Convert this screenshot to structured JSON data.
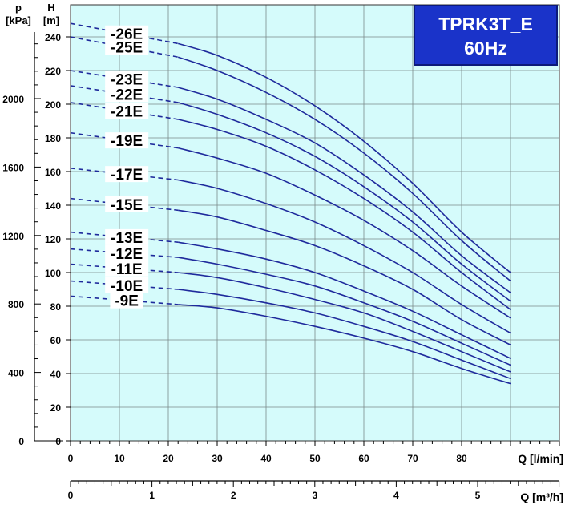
{
  "title_box": {
    "line1": "TPRK3T_E",
    "line2": "60Hz"
  },
  "colors": {
    "plot_bg": "#d5fbfb",
    "curve": "#1f2a9c",
    "grid": "#7a8a8a",
    "title_bg": "#1a33c9"
  },
  "axes": {
    "pressure_unit_line1": "p",
    "pressure_unit_line2": "[kPa]",
    "head_unit_line1": "H",
    "head_unit_line2": "[m]",
    "flow_lmin_label": "Q [l/min]",
    "flow_m3h_label": "Q [m³/h]",
    "head_ticks": [
      "0",
      "20",
      "40",
      "60",
      "80",
      "100",
      "120",
      "140",
      "160",
      "180",
      "200",
      "220",
      "240"
    ],
    "pressure_ticks": [
      "0",
      "400",
      "800",
      "1200",
      "1600",
      "2000"
    ],
    "flow_lmin_ticks": [
      "0",
      "10",
      "20",
      "30",
      "40",
      "50",
      "60",
      "70",
      "80"
    ],
    "flow_m3h_ticks": [
      "0",
      "1",
      "2",
      "3",
      "4",
      "5"
    ]
  },
  "chart_data": {
    "type": "line",
    "xlabel": "Q [l/min]",
    "ylabel": "H [m]",
    "xlim": [
      0,
      100
    ],
    "ylim": [
      0,
      250
    ],
    "secondary_y": {
      "label": "p [kPa]",
      "lim": [
        0,
        2450
      ]
    },
    "secondary_x": {
      "label": "Q [m³/h]",
      "lim": [
        0,
        6
      ]
    },
    "grid": true,
    "dashed_range_lmin": [
      0,
      22
    ],
    "x": [
      0,
      22,
      30,
      40,
      50,
      60,
      70,
      80,
      90
    ],
    "series": [
      {
        "name": "-26E",
        "values": [
          248,
          236,
          229,
          216,
          199,
          178,
          153,
          124,
          100
        ]
      },
      {
        "name": "-25E",
        "values": [
          240,
          228,
          220,
          207,
          191,
          171,
          147,
          119,
          95
        ]
      },
      {
        "name": "-23E",
        "values": [
          220,
          210,
          203,
          191,
          177,
          158,
          136,
          110,
          88
        ]
      },
      {
        "name": "-22E",
        "values": [
          211,
          201,
          194,
          183,
          169,
          151,
          130,
          105,
          83
        ]
      },
      {
        "name": "-21E",
        "values": [
          201,
          191,
          185,
          175,
          161,
          144,
          124,
          100,
          78
        ]
      },
      {
        "name": "-19E",
        "values": [
          183,
          174,
          168,
          159,
          146,
          131,
          113,
          92,
          73
        ]
      },
      {
        "name": "-17E",
        "values": [
          162,
          155,
          150,
          141,
          130,
          116,
          100,
          81,
          64
        ]
      },
      {
        "name": "-15E",
        "values": [
          144,
          137,
          133,
          125,
          116,
          104,
          90,
          72,
          57
        ]
      },
      {
        "name": "-13E",
        "values": [
          124,
          118,
          114,
          108,
          100,
          89,
          77,
          63,
          49
        ]
      },
      {
        "name": "-12E",
        "values": [
          114,
          109,
          105,
          99,
          92,
          82,
          71,
          58,
          45
        ]
      },
      {
        "name": "-11E",
        "values": [
          105,
          100,
          97,
          91,
          84,
          76,
          65,
          53,
          41
        ]
      },
      {
        "name": "-10E",
        "values": [
          95,
          90,
          87,
          82,
          76,
          68,
          59,
          48,
          37
        ]
      },
      {
        "name": "-9E",
        "values": [
          86,
          81,
          79,
          74,
          68,
          61,
          53,
          43,
          34
        ]
      }
    ]
  }
}
